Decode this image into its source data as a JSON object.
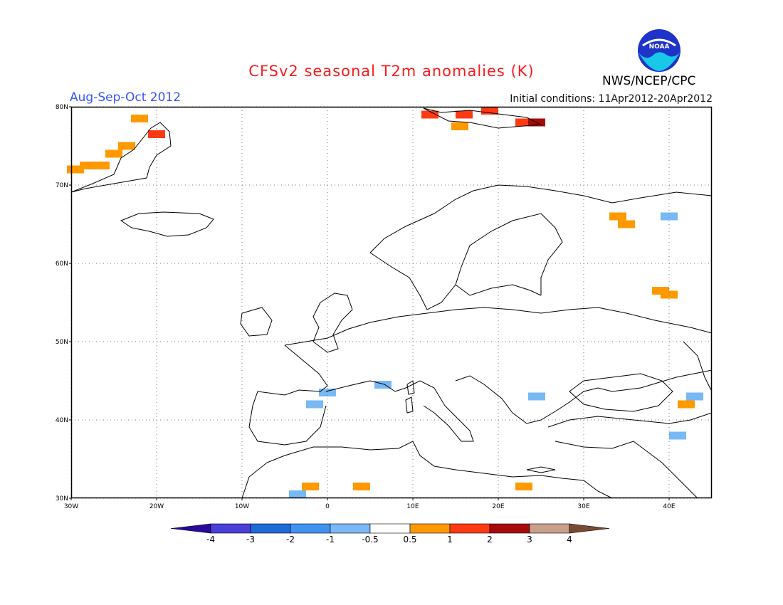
{
  "title": "CFSv2 seasonal T2m anomalies (K)",
  "period": "Aug-Sep-Oct 2012",
  "initial_conditions": "Initial conditions: 11Apr2012-20Apr2012",
  "agency": "NWS/NCEP/CPC",
  "logo_text": "NOAA",
  "map": {
    "lon_range": [
      -30,
      45
    ],
    "lat_range": [
      30,
      80
    ],
    "lat_labels": [
      "30N",
      "40N",
      "50N",
      "60N",
      "70N",
      "80N"
    ],
    "lon_labels": [
      "30W",
      "20W",
      "10W",
      "0",
      "10E",
      "20E",
      "30E",
      "40E"
    ],
    "grid": true
  },
  "colorbar": {
    "tick_labels": [
      "-4",
      "-3",
      "-2",
      "-1",
      "-0.5",
      "0.5",
      "1",
      "2",
      "3",
      "4"
    ],
    "colors": [
      "#2a0a9c",
      "#4a3fd8",
      "#1e6ad8",
      "#3f92f0",
      "#78b9f5",
      "#ffffff",
      "#ff9900",
      "#ff3a12",
      "#a80a0a",
      "#c8a08c",
      "#7a4a32"
    ]
  },
  "anomaly_cells": [
    {
      "lon": -29.5,
      "lat": 72.0,
      "color": "#ff9900"
    },
    {
      "lon": -28.0,
      "lat": 72.5,
      "color": "#ff9900"
    },
    {
      "lon": -26.5,
      "lat": 72.5,
      "color": "#ff9900"
    },
    {
      "lon": -25.0,
      "lat": 74.0,
      "color": "#ff9900"
    },
    {
      "lon": -23.5,
      "lat": 75.0,
      "color": "#ff9900"
    },
    {
      "lon": -22.0,
      "lat": 78.5,
      "color": "#ff9900"
    },
    {
      "lon": -20.0,
      "lat": 76.5,
      "color": "#ff3a12"
    },
    {
      "lon": 12.0,
      "lat": 79.0,
      "color": "#ff3a12"
    },
    {
      "lon": 16.0,
      "lat": 79.0,
      "color": "#ff3a12"
    },
    {
      "lon": 19.0,
      "lat": 79.5,
      "color": "#ff3a12"
    },
    {
      "lon": 23.0,
      "lat": 78.0,
      "color": "#ff3a12"
    },
    {
      "lon": 24.5,
      "lat": 78.0,
      "color": "#a80a0a"
    },
    {
      "lon": 15.5,
      "lat": 77.5,
      "color": "#ff9900"
    },
    {
      "lon": 34.0,
      "lat": 66.0,
      "color": "#ff9900"
    },
    {
      "lon": 35.0,
      "lat": 65.0,
      "color": "#ff9900"
    },
    {
      "lon": 40.0,
      "lat": 66.0,
      "color": "#78b9f5"
    },
    {
      "lon": 39.0,
      "lat": 56.5,
      "color": "#ff9900"
    },
    {
      "lon": 40.0,
      "lat": 56.0,
      "color": "#ff9900"
    },
    {
      "lon": 42.0,
      "lat": 42.0,
      "color": "#ff9900"
    },
    {
      "lon": 43.0,
      "lat": 43.0,
      "color": "#78b9f5"
    },
    {
      "lon": 41.0,
      "lat": 38.0,
      "color": "#78b9f5"
    },
    {
      "lon": 24.5,
      "lat": 43.0,
      "color": "#78b9f5"
    },
    {
      "lon": 6.5,
      "lat": 44.5,
      "color": "#78b9f5"
    },
    {
      "lon": 0.0,
      "lat": 43.5,
      "color": "#78b9f5"
    },
    {
      "lon": -1.5,
      "lat": 42.0,
      "color": "#78b9f5"
    },
    {
      "lon": -2.0,
      "lat": 31.5,
      "color": "#ff9900"
    },
    {
      "lon": 4.0,
      "lat": 31.5,
      "color": "#ff9900"
    },
    {
      "lon": 23.0,
      "lat": 31.5,
      "color": "#ff9900"
    },
    {
      "lon": -3.5,
      "lat": 30.5,
      "color": "#78b9f5"
    }
  ]
}
